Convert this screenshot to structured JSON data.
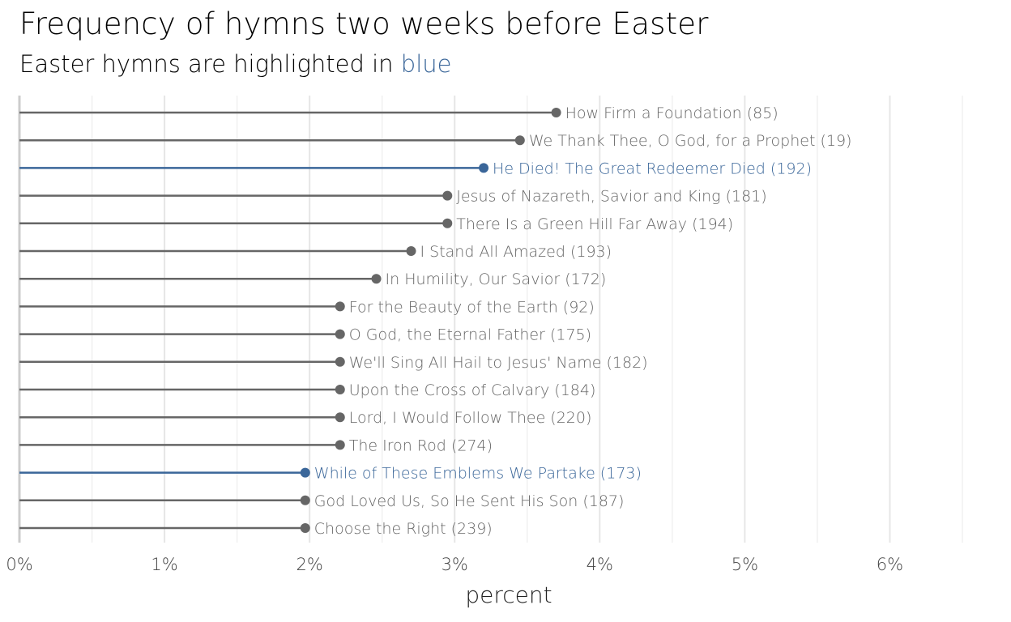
{
  "chart_data": {
    "type": "lollipop",
    "title": "Frequency of hymns two weeks before Easter",
    "subtitle_prefix": "Easter hymns are highlighted in ",
    "subtitle_highlight": "blue",
    "xlabel": "percent",
    "ylabel": "",
    "xlim": [
      0,
      6.5
    ],
    "x_ticks": [
      0,
      1,
      2,
      3,
      4,
      5,
      6
    ],
    "x_tick_labels": [
      "0%",
      "1%",
      "2%",
      "3%",
      "4%",
      "5%",
      "6%"
    ],
    "grid": true,
    "colors": {
      "default": "#666666",
      "easter": "#3a6699",
      "grid_major": "#e6e6e6",
      "grid_minor": "#f0f0f0",
      "zero_line": "#cccccc"
    },
    "hymns": [
      {
        "label": "How Firm a Foundation (85)",
        "value": 3.7,
        "easter": false
      },
      {
        "label": "We Thank Thee, O God, for a Prophet (19)",
        "value": 3.45,
        "easter": false
      },
      {
        "label": "He Died! The Great Redeemer Died (192)",
        "value": 3.2,
        "easter": true
      },
      {
        "label": "Jesus of Nazareth, Savior and King (181)",
        "value": 2.95,
        "easter": false
      },
      {
        "label": "There Is a Green Hill Far Away (194)",
        "value": 2.95,
        "easter": false
      },
      {
        "label": "I Stand All Amazed (193)",
        "value": 2.7,
        "easter": false
      },
      {
        "label": "In Humility, Our Savior (172)",
        "value": 2.46,
        "easter": false
      },
      {
        "label": "For the Beauty of the Earth (92)",
        "value": 2.21,
        "easter": false
      },
      {
        "label": "O God, the Eternal Father (175)",
        "value": 2.21,
        "easter": false
      },
      {
        "label": "We'll Sing All Hail to Jesus' Name (182)",
        "value": 2.21,
        "easter": false
      },
      {
        "label": "Upon the Cross of Calvary (184)",
        "value": 2.21,
        "easter": false
      },
      {
        "label": "Lord, I Would Follow Thee (220)",
        "value": 2.21,
        "easter": false
      },
      {
        "label": "The Iron Rod (274)",
        "value": 2.21,
        "easter": false
      },
      {
        "label": "While of These Emblems We Partake (173)",
        "value": 1.97,
        "easter": true
      },
      {
        "label": "God Loved Us, So He Sent His Son (187)",
        "value": 1.97,
        "easter": false
      },
      {
        "label": "Choose the Right (239)",
        "value": 1.97,
        "easter": false
      }
    ]
  }
}
